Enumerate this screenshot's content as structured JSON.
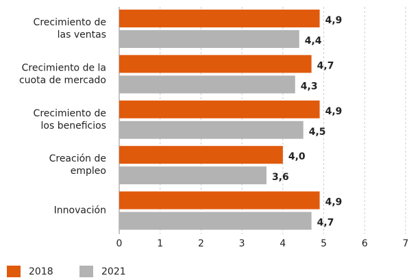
{
  "chart_data": {
    "type": "hbar",
    "categories": [
      [
        "Crecimiento de",
        "las ventas"
      ],
      [
        "Crecimiento de la",
        "cuota de mercado"
      ],
      [
        "Crecimiento de",
        "los beneficios"
      ],
      [
        "Creación de",
        "empleo"
      ],
      [
        "Innovación"
      ]
    ],
    "series": [
      {
        "name": "2018",
        "color": "#e05a0c",
        "values": [
          4.9,
          4.7,
          4.9,
          4.0,
          4.9
        ],
        "value_labels": [
          "4,9",
          "4,7",
          "4,9",
          "4,0",
          "4,9"
        ]
      },
      {
        "name": "2021",
        "color": "#b3b3b3",
        "values": [
          4.4,
          4.3,
          4.5,
          3.6,
          4.7
        ],
        "value_labels": [
          "4,4",
          "4,3",
          "4,5",
          "3,6",
          "4,7"
        ]
      }
    ],
    "xlim": [
      0,
      7
    ],
    "xticks": [
      0,
      1,
      2,
      3,
      4,
      5,
      6,
      7
    ],
    "grid": true
  }
}
